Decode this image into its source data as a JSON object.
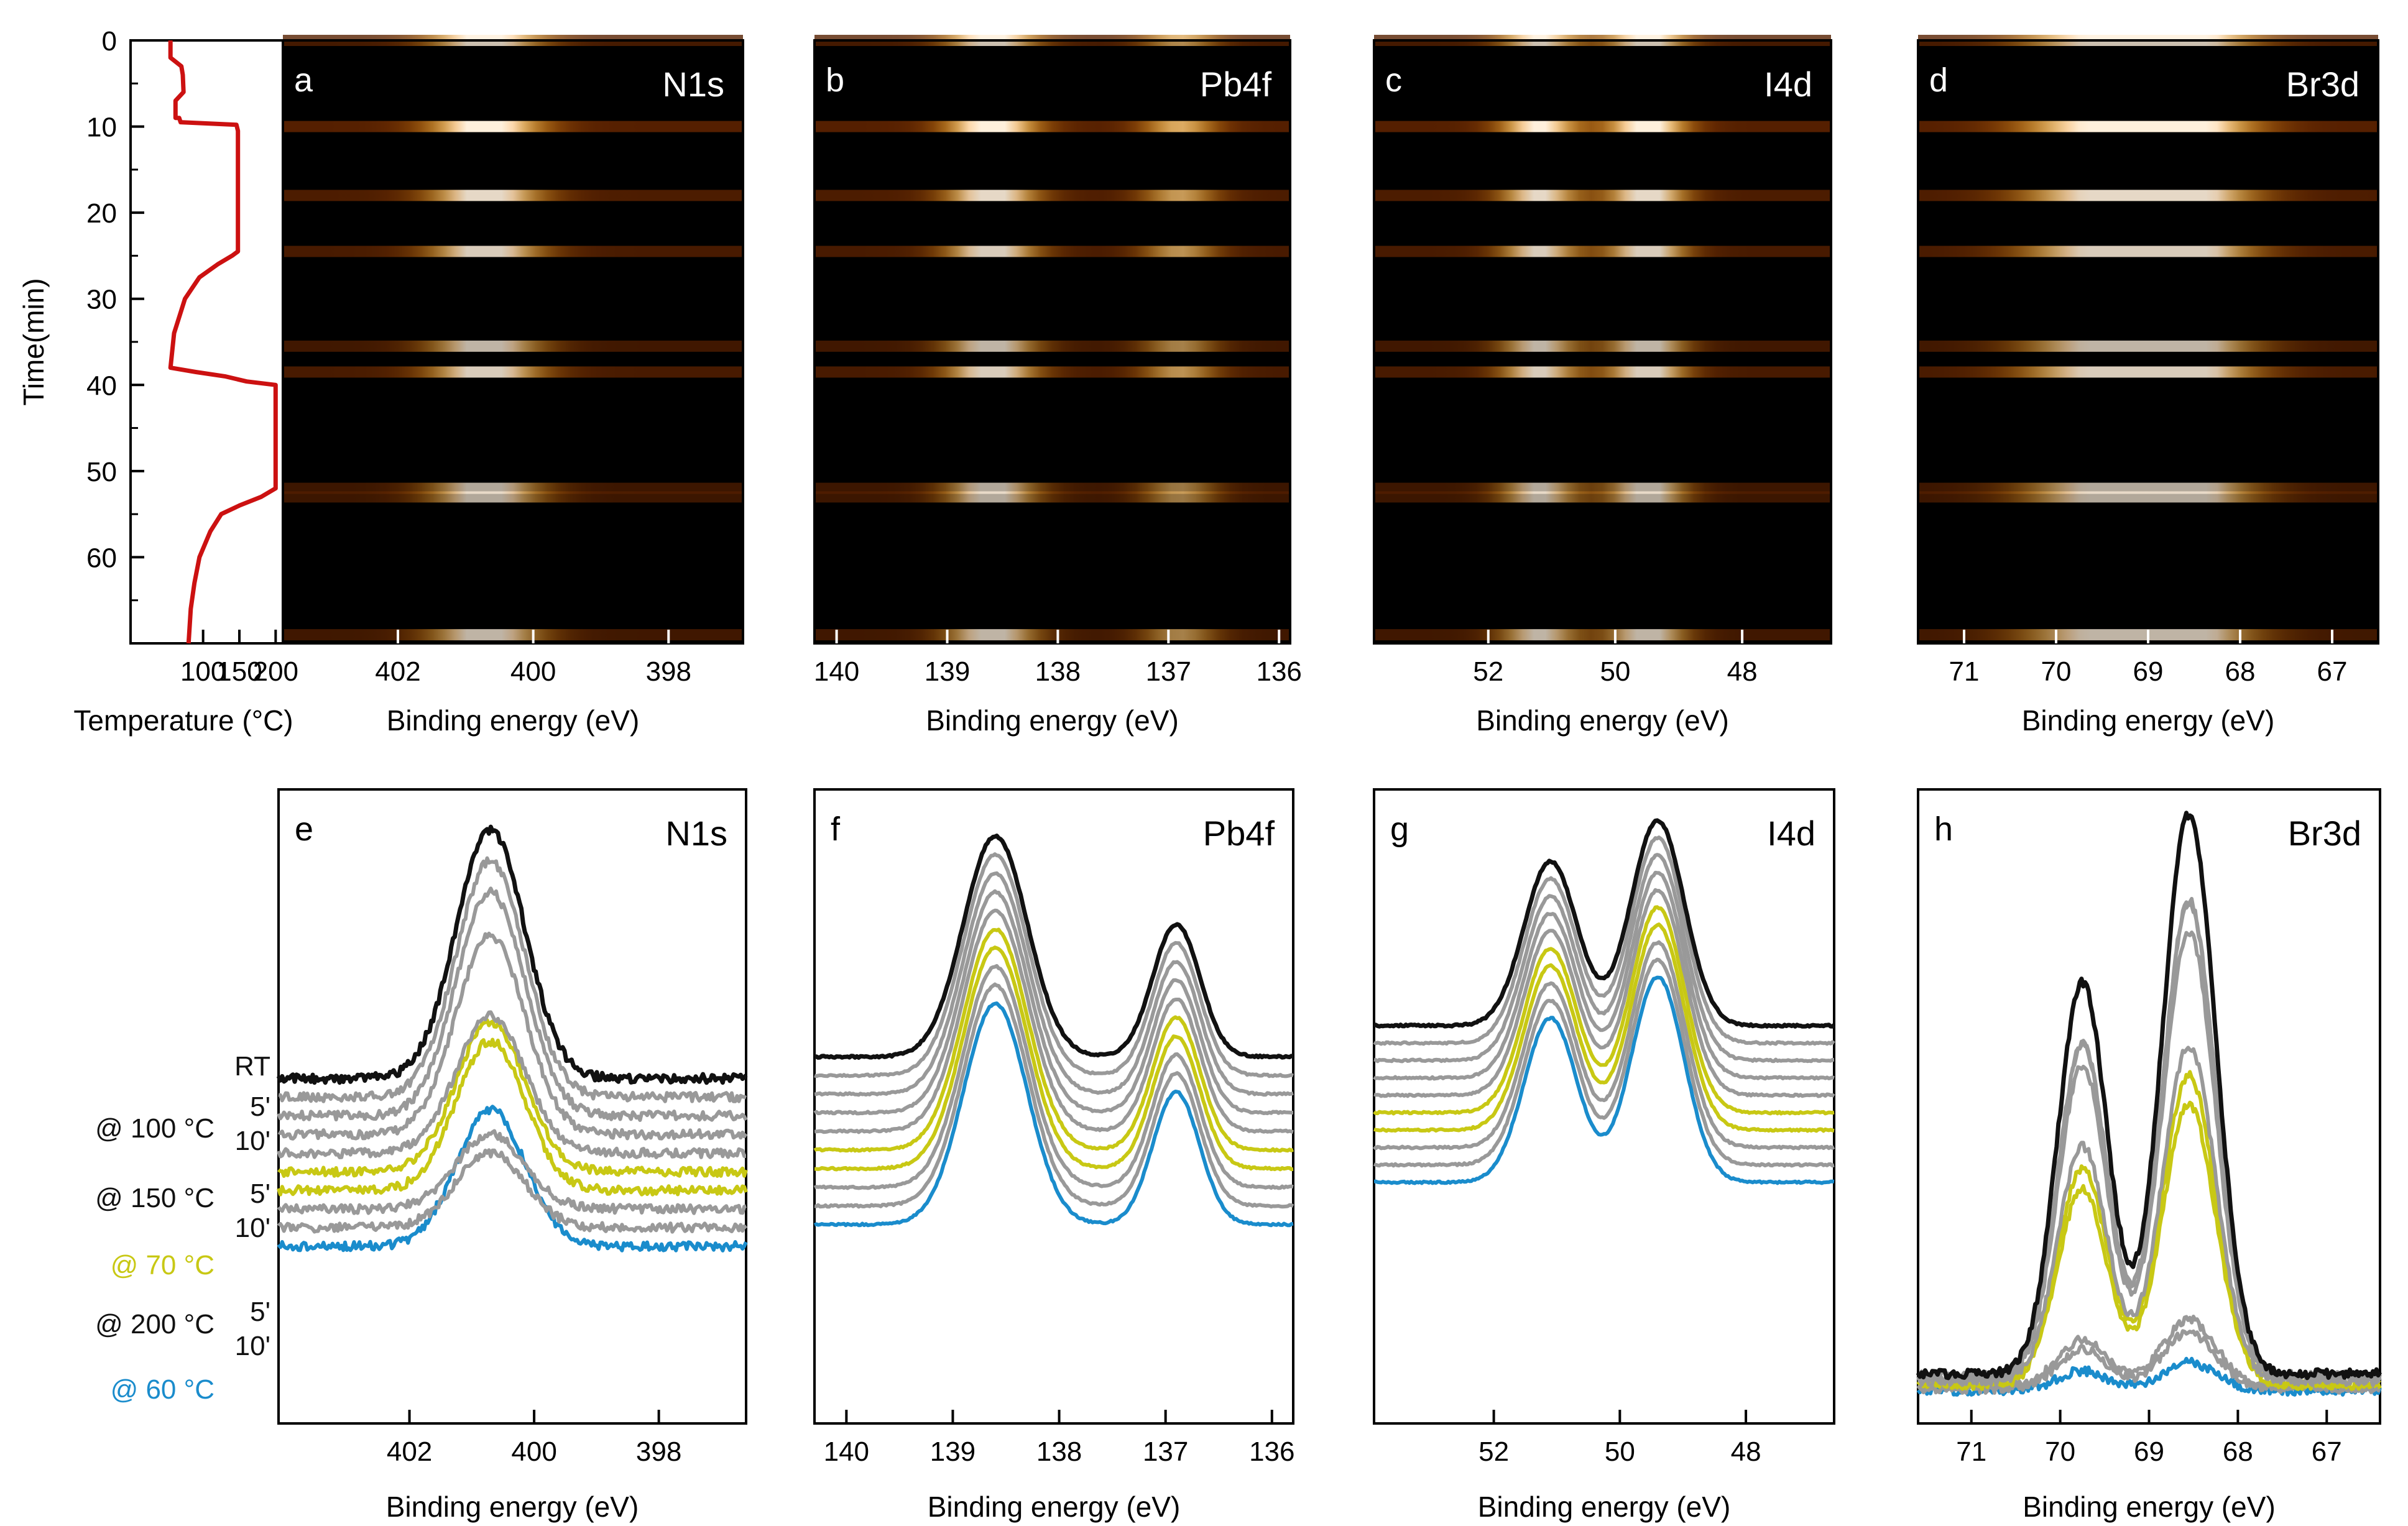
{
  "colors": {
    "temp_line": "#cc1111",
    "trace_black": "#111111",
    "trace_gray": "#999999",
    "trace_yellow": "#c8c814",
    "trace_blue": "#1a8ccc",
    "map_background": "#000000",
    "map_band": "#ff8c20"
  },
  "temperature_panel": {
    "type": "line",
    "xlabel": "Temperature (°C)",
    "ylabel": "Time(min)",
    "xlim": [
      0,
      210
    ],
    "ylim": [
      70,
      0
    ],
    "xticks": [
      "100",
      "150",
      "200"
    ],
    "yticks": [
      "0",
      "10",
      "20",
      "30",
      "40",
      "50",
      "60"
    ],
    "points": [
      [
        55,
        0
      ],
      [
        55,
        2
      ],
      [
        70,
        3
      ],
      [
        72,
        4
      ],
      [
        73,
        6
      ],
      [
        62,
        7
      ],
      [
        62,
        9
      ],
      [
        67,
        9
      ],
      [
        69,
        9.5
      ],
      [
        146,
        9.8
      ],
      [
        148,
        10.5
      ],
      [
        148,
        24.5
      ],
      [
        140,
        25
      ],
      [
        120,
        26
      ],
      [
        95,
        27.5
      ],
      [
        75,
        30
      ],
      [
        60,
        34
      ],
      [
        55,
        38
      ],
      [
        90,
        38.5
      ],
      [
        130,
        39
      ],
      [
        160,
        39.6
      ],
      [
        200,
        40
      ],
      [
        200,
        52
      ],
      [
        180,
        53
      ],
      [
        150,
        54
      ],
      [
        125,
        55
      ],
      [
        110,
        57
      ],
      [
        95,
        60
      ],
      [
        88,
        63
      ],
      [
        83,
        66
      ],
      [
        80,
        70
      ]
    ]
  },
  "map_panels": [
    {
      "letter": "a",
      "label": "N1s",
      "xlabel": "Binding energy (eV)",
      "xlim": [
        403.7,
        396.9
      ],
      "xticks": [
        "402",
        "400",
        "398"
      ],
      "peaks": [
        {
          "center": 400.7,
          "width": 0.6,
          "amp": 1.0
        }
      ]
    },
    {
      "letter": "b",
      "label": "Pb4f",
      "xlabel": "Binding energy (eV)",
      "xlim": [
        140.2,
        135.9
      ],
      "xticks": [
        "140",
        "139",
        "138",
        "137",
        "136"
      ],
      "peaks": [
        {
          "center": 138.6,
          "width": 0.3,
          "amp": 1.0
        },
        {
          "center": 136.9,
          "width": 0.25,
          "amp": 0.65
        }
      ]
    },
    {
      "letter": "c",
      "label": "I4d",
      "xlabel": "Binding energy (eV)",
      "xlim": [
        53.8,
        46.6
      ],
      "xticks": [
        "52",
        "50",
        "48"
      ],
      "peaks": [
        {
          "center": 51.2,
          "width": 0.45,
          "amp": 0.9
        },
        {
          "center": 49.5,
          "width": 0.45,
          "amp": 1.0
        }
      ]
    },
    {
      "letter": "d",
      "label": "Br3d",
      "xlabel": "Binding energy (eV)",
      "xlim": [
        71.5,
        66.5
      ],
      "xticks": [
        "71",
        "70",
        "69",
        "68",
        "67"
      ],
      "peaks": [
        {
          "center": 69.7,
          "width": 0.55,
          "amp": 0.75
        },
        {
          "center": 68.6,
          "width": 0.55,
          "amp": 1.0
        }
      ]
    }
  ],
  "map_bands": [
    {
      "time": 0,
      "intensity": 0.8
    },
    {
      "time": 10,
      "intensity": 1.0
    },
    {
      "time": 18,
      "intensity": 0.9
    },
    {
      "time": 24.5,
      "intensity": 0.85
    },
    {
      "time": 35.5,
      "intensity": 0.75
    },
    {
      "time": 38.5,
      "intensity": 0.85
    },
    {
      "time": 52,
      "intensity": 0.7
    },
    {
      "time": 53,
      "intensity": 0.7
    },
    {
      "time": 69,
      "intensity": 0.75
    }
  ],
  "spectra_panels": [
    {
      "letter": "e",
      "label": "N1s",
      "xlabel": "Binding energy (eV)",
      "xlim": [
        404.1,
        396.6
      ],
      "xticks": [
        "402",
        "400",
        "398"
      ],
      "peaks": [
        {
          "center": 400.7,
          "width": 0.55,
          "amp": 1.0
        }
      ]
    },
    {
      "letter": "f",
      "label": "Pb4f",
      "xlabel": "Binding energy (eV)",
      "xlim": [
        140.3,
        135.8
      ],
      "xticks": [
        "140",
        "139",
        "138",
        "137",
        "136"
      ],
      "peaks": [
        {
          "center": 138.6,
          "width": 0.3,
          "amp": 1.0
        },
        {
          "center": 136.9,
          "width": 0.22,
          "amp": 0.6
        }
      ]
    },
    {
      "letter": "g",
      "label": "I4d",
      "xlabel": "Binding energy (eV)",
      "xlim": [
        53.9,
        46.6
      ],
      "xticks": [
        "52",
        "50",
        "48"
      ],
      "peaks": [
        {
          "center": 51.1,
          "width": 0.42,
          "amp": 0.8
        },
        {
          "center": 49.4,
          "width": 0.42,
          "amp": 1.0
        }
      ]
    },
    {
      "letter": "h",
      "label": "Br3d",
      "xlabel": "Binding energy (eV)",
      "xlim": [
        71.6,
        66.4
      ],
      "xticks": [
        "71",
        "70",
        "69",
        "68",
        "67"
      ],
      "peaks": [
        {
          "center": 69.75,
          "width": 0.28,
          "amp": 0.7
        },
        {
          "center": 68.55,
          "width": 0.3,
          "amp": 1.0
        }
      ]
    }
  ],
  "spectra_traces": [
    {
      "color": "black",
      "peak_scale": [
        1.0,
        1.0,
        1.0,
        1.0
      ]
    },
    {
      "color": "gray",
      "peak_scale": [
        0.95,
        1.0,
        1.0,
        0.85
      ]
    },
    {
      "color": "gray",
      "peak_scale": [
        0.9,
        1.0,
        1.0,
        0.85
      ]
    },
    {
      "color": "gray",
      "peak_scale": [
        0.8,
        1.0,
        1.0,
        0.8
      ]
    },
    {
      "color": "gray",
      "peak_scale": [
        0.55,
        1.0,
        1.0,
        0.6
      ]
    },
    {
      "color": "yellow",
      "peak_scale": [
        0.6,
        1.0,
        1.0,
        0.55
      ]
    },
    {
      "color": "yellow",
      "peak_scale": [
        0.6,
        1.0,
        1.0,
        0.5
      ]
    },
    {
      "color": "gray",
      "peak_scale": [
        0.3,
        1.0,
        1.0,
        0.12
      ]
    },
    {
      "color": "gray",
      "peak_scale": [
        0.3,
        1.0,
        1.0,
        0.1
      ]
    },
    {
      "color": "blue",
      "peak_scale": [
        0.55,
        1.0,
        1.0,
        0.05
      ]
    }
  ],
  "legend_labels": [
    {
      "text": "RT",
      "color": "black"
    },
    {
      "text": "5'",
      "color": "black"
    },
    {
      "text": "@ 100 °C",
      "color": "black"
    },
    {
      "text": "10'",
      "color": "black"
    },
    {
      "text": "@ 150 °C",
      "color": "black"
    },
    {
      "text": "5'",
      "color": "black"
    },
    {
      "text": "10'",
      "color": "black"
    },
    {
      "text": "@  70 °C",
      "color": "yellow"
    },
    {
      "text": "@ 200 °C",
      "color": "black"
    },
    {
      "text": "5'",
      "color": "black"
    },
    {
      "text": "10'",
      "color": "black"
    },
    {
      "text": "@ 60 °C",
      "color": "blue"
    }
  ]
}
